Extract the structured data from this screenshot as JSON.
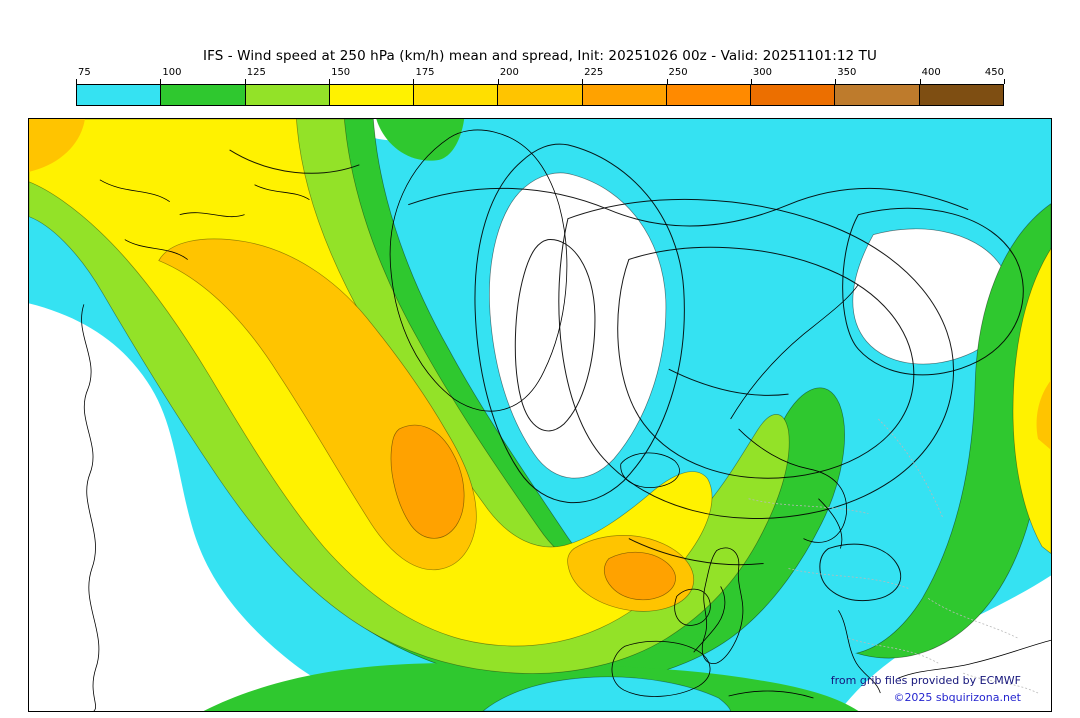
{
  "title": "IFS - Wind speed at 250 hPa (km/h) mean and spread, Init: 20251026 00z - Valid: 20251101:12 TU",
  "colorbar": {
    "tick_labels": [
      "75",
      "100",
      "125",
      "150",
      "175",
      "200",
      "225",
      "250",
      "300",
      "350",
      "400",
      "450"
    ],
    "segment_colors": [
      "#35E2F2",
      "#2FC82F",
      "#93E228",
      "#FFF200",
      "#FFDF00",
      "#FFC400",
      "#FFA200",
      "#FF8A00",
      "#EC6F00",
      "#BE7B2C",
      "#7E4E12"
    ]
  },
  "map": {
    "attribution_line1": "from grib files provided by ECMWF",
    "attribution_line2": "©2025 sbquirizona.net",
    "attribution_color_1": "#15157b",
    "attribution_color_2": "#2424cf"
  },
  "palette": {
    "calm": "#ffffff",
    "wind_75_100": "#35E2F2",
    "wind_100_125": "#2FC82F",
    "wind_125_150": "#93E228",
    "wind_150_175": "#FFF200",
    "wind_200_225": "#FFC400",
    "wind_225_250": "#FFA200",
    "coastline": "#000000",
    "grid_gray": "#b9b9b9"
  },
  "chart_data": {
    "type": "heatmap",
    "variable": "Wind speed at 250 hPa",
    "units": "km/h",
    "statistic": "mean and spread",
    "model": "IFS",
    "init": "20251026 00z",
    "valid": "20251101:12 TU",
    "contour_levels": [
      75,
      100,
      125,
      150,
      175,
      200,
      225,
      250,
      300,
      350,
      400,
      450
    ]
  }
}
